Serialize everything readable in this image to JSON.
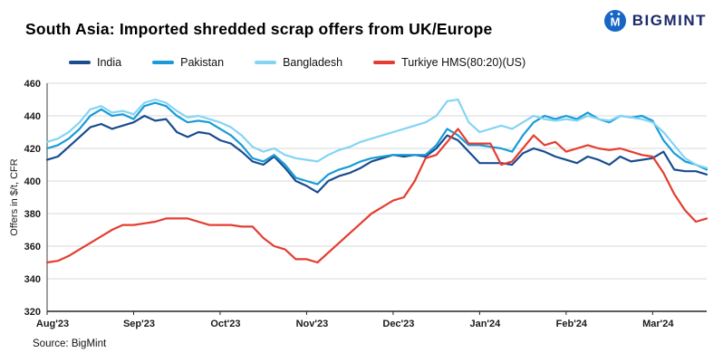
{
  "header": {
    "title": "South Asia: Imported shredded scrap offers from UK/Europe",
    "logo_text": "BIGMINT",
    "logo_color": "#1b2a6b",
    "logo_icon_color": "#1766c5"
  },
  "chart_data": {
    "type": "line",
    "title": "South Asia: Imported shredded scrap offers from UK/Europe",
    "ylabel": "Offers in $/t, CFR",
    "ylim": [
      320,
      460
    ],
    "ytick_step": 20,
    "grid": "horizontal",
    "legend_position": "top",
    "n_points": 62,
    "x_tick_indices": [
      0,
      8,
      16,
      24,
      32,
      40,
      48,
      56
    ],
    "x_tick_labels": [
      "Aug'23",
      "Sep'23",
      "Oct'23",
      "Nov'23",
      "Dec'23",
      "Jan'24",
      "Feb'24",
      "Mar'24"
    ],
    "grid_color": "#d9d9d9",
    "axis_color": "#404040",
    "series": [
      {
        "name": "India",
        "color": "#1a4c8f",
        "values": [
          413,
          415,
          421,
          427,
          433,
          435,
          432,
          434,
          436,
          440,
          437,
          438,
          430,
          427,
          430,
          429,
          425,
          423,
          418,
          412,
          410,
          415,
          408,
          400,
          397,
          393,
          400,
          403,
          405,
          408,
          412,
          414,
          416,
          415,
          416,
          415,
          420,
          428,
          425,
          418,
          411,
          411,
          411,
          410,
          417,
          420,
          418,
          415,
          413,
          411,
          415,
          413,
          410,
          415,
          412,
          413,
          414,
          418,
          407,
          406,
          406,
          404
        ]
      },
      {
        "name": "Pakistan",
        "color": "#189bd7",
        "values": [
          420,
          422,
          426,
          432,
          440,
          444,
          440,
          441,
          438,
          446,
          448,
          446,
          440,
          436,
          437,
          436,
          432,
          428,
          422,
          414,
          412,
          416,
          410,
          402,
          400,
          398,
          404,
          407,
          409,
          412,
          414,
          415,
          416,
          416,
          416,
          416,
          422,
          432,
          428,
          422,
          422,
          421,
          420,
          418,
          428,
          436,
          440,
          438,
          440,
          438,
          442,
          438,
          436,
          440,
          439,
          440,
          437,
          425,
          417,
          412,
          410,
          407
        ]
      },
      {
        "name": "Bangladesh",
        "color": "#85d4f4",
        "values": [
          424,
          426,
          430,
          436,
          444,
          446,
          442,
          443,
          441,
          448,
          450,
          448,
          443,
          439,
          440,
          438,
          436,
          433,
          428,
          421,
          418,
          420,
          416,
          414,
          413,
          412,
          416,
          419,
          421,
          424,
          426,
          428,
          430,
          432,
          434,
          436,
          440,
          449,
          450,
          436,
          430,
          432,
          434,
          432,
          436,
          440,
          438,
          437,
          438,
          437,
          440,
          438,
          437,
          440,
          439,
          438,
          436,
          430,
          422,
          414,
          410,
          408
        ]
      },
      {
        "name": "Turkiye HMS(80:20)(US)",
        "color": "#e43d30",
        "values": [
          350,
          351,
          354,
          358,
          362,
          366,
          370,
          373,
          373,
          374,
          375,
          377,
          377,
          377,
          375,
          373,
          373,
          373,
          372,
          372,
          365,
          360,
          358,
          352,
          352,
          350,
          356,
          362,
          368,
          374,
          380,
          384,
          388,
          390,
          400,
          414,
          416,
          424,
          432,
          423,
          423,
          423,
          410,
          412,
          420,
          428,
          422,
          424,
          418,
          420,
          422,
          420,
          419,
          420,
          418,
          416,
          415,
          405,
          392,
          382,
          375,
          377
        ]
      }
    ]
  },
  "footer": {
    "source": "Source: BigMint"
  }
}
